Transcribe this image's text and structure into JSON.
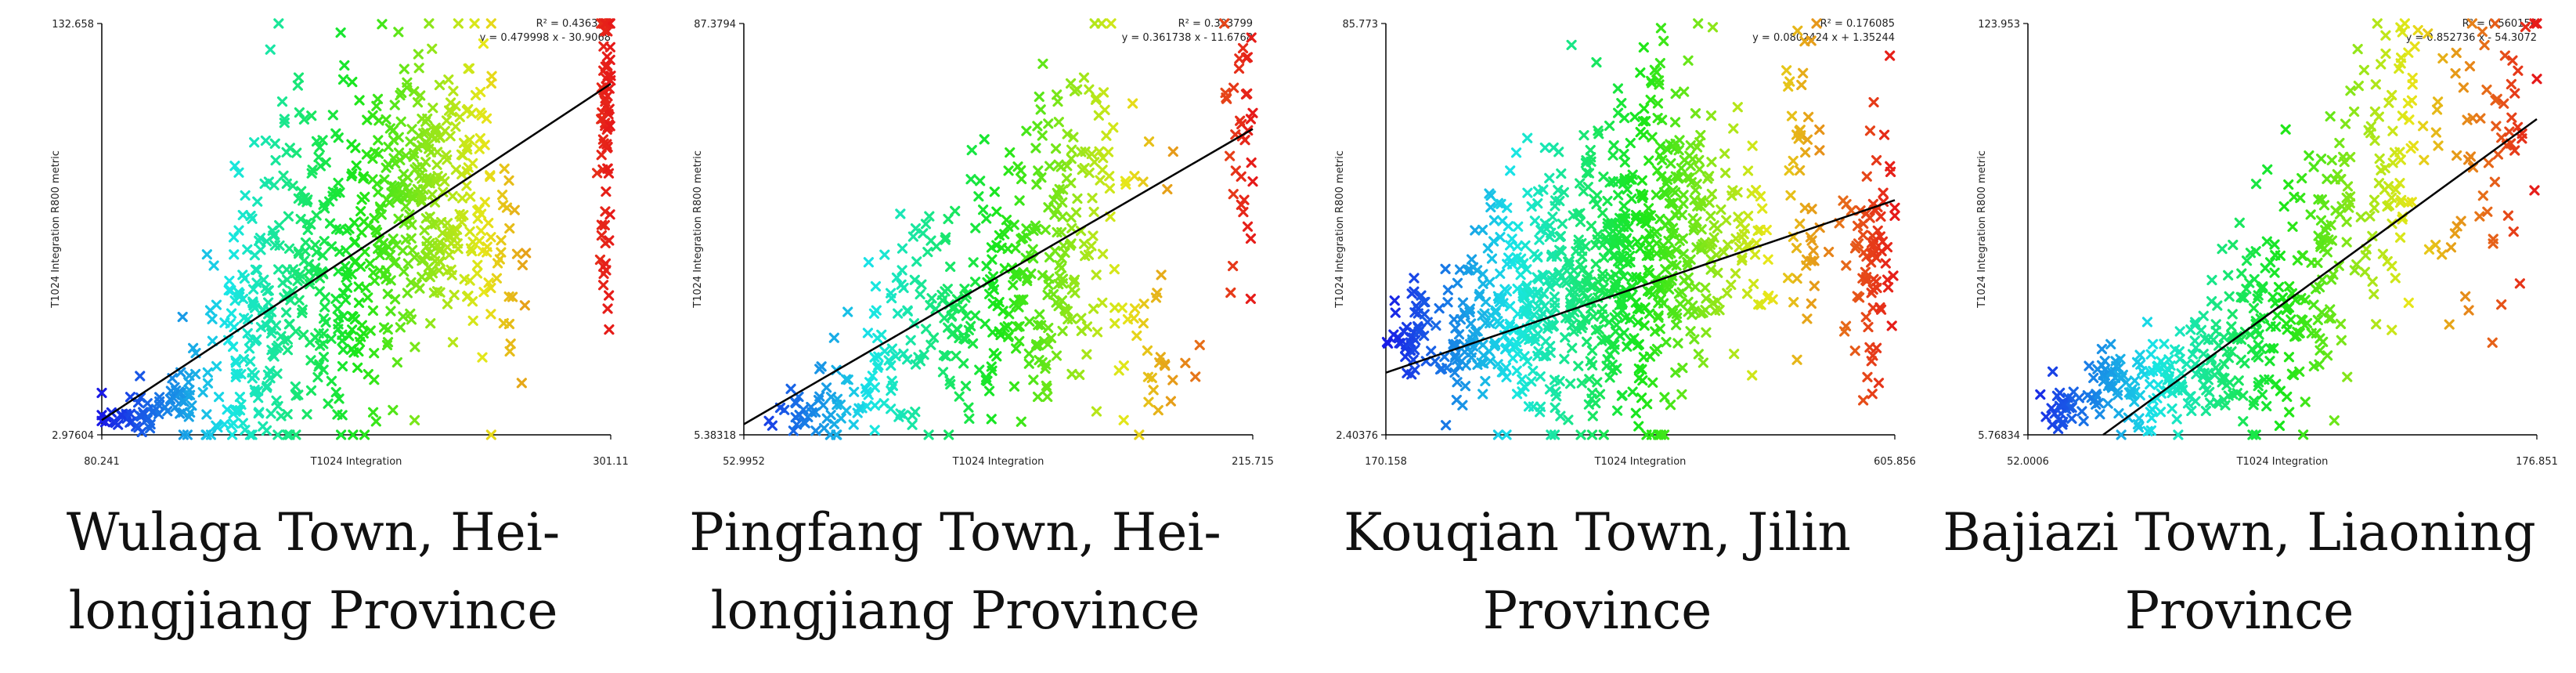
{
  "chart_data": [
    {
      "type": "scatter",
      "title": "",
      "xlabel": "T1024 Integration",
      "ylabel": "T1024 Integration R800 metric",
      "xlim": [
        80.241,
        301.11
      ],
      "ylim": [
        2.97604,
        132.658
      ],
      "x_ticks": [
        "80.241",
        "301.11"
      ],
      "y_ticks": [
        "2.97604",
        "132.658"
      ],
      "annotation": {
        "r2": "R² = 0.436396",
        "equation": "y = 0.479998 x - 30.9068"
      },
      "fit": {
        "slope": 0.479998,
        "intercept": -30.9068
      },
      "caption": [
        "Wulaga Town, Hei-",
        "longjiang Province"
      ],
      "clusters": [
        {
          "x": 92,
          "y": 8,
          "sx": 6,
          "sy": 2,
          "n": 25
        },
        {
          "x": 115,
          "y": 14,
          "sx": 15,
          "sy": 6,
          "n": 60
        },
        {
          "x": 140,
          "y": 32,
          "sx": 12,
          "sy": 18,
          "n": 80
        },
        {
          "x": 160,
          "y": 50,
          "sx": 12,
          "sy": 25,
          "n": 110
        },
        {
          "x": 180,
          "y": 58,
          "sx": 12,
          "sy": 28,
          "n": 120
        },
        {
          "x": 200,
          "y": 65,
          "sx": 10,
          "sy": 28,
          "n": 100
        },
        {
          "x": 215,
          "y": 85,
          "sx": 9,
          "sy": 22,
          "n": 90
        },
        {
          "x": 228,
          "y": 78,
          "sx": 10,
          "sy": 22,
          "n": 90
        },
        {
          "x": 242,
          "y": 80,
          "sx": 8,
          "sy": 25,
          "n": 60
        },
        {
          "x": 255,
          "y": 50,
          "sx": 6,
          "sy": 25,
          "n": 25
        },
        {
          "x": 299,
          "y": 95,
          "sx": 1.2,
          "sy": 30,
          "n": 70
        }
      ]
    },
    {
      "type": "scatter",
      "title": "",
      "xlabel": "T1024 Integration",
      "ylabel": "T1024 Integration R800 metric",
      "xlim": [
        52.9952,
        215.715
      ],
      "ylim": [
        5.38318,
        87.3794
      ],
      "x_ticks": [
        "52.9952",
        "215.715"
      ],
      "y_ticks": [
        "5.38318",
        "87.3794"
      ],
      "annotation": {
        "r2": "R² = 0.393799",
        "equation": "y = 0.361738 x - 11.6768"
      },
      "fit": {
        "slope": 0.361738,
        "intercept": -11.6768
      },
      "caption": [
        "Pingfang Town, Hei-",
        "longjiang Province"
      ],
      "clusters": [
        {
          "x": 75,
          "y": 10,
          "sx": 7,
          "sy": 3,
          "n": 35
        },
        {
          "x": 95,
          "y": 18,
          "sx": 8,
          "sy": 8,
          "n": 50
        },
        {
          "x": 115,
          "y": 30,
          "sx": 10,
          "sy": 13,
          "n": 80
        },
        {
          "x": 135,
          "y": 35,
          "sx": 10,
          "sy": 14,
          "n": 90
        },
        {
          "x": 150,
          "y": 42,
          "sx": 8,
          "sy": 15,
          "n": 80
        },
        {
          "x": 160,
          "y": 55,
          "sx": 8,
          "sy": 14,
          "n": 60
        },
        {
          "x": 175,
          "y": 40,
          "sx": 10,
          "sy": 18,
          "n": 40
        },
        {
          "x": 185,
          "y": 18,
          "sx": 6,
          "sy": 4,
          "n": 12
        },
        {
          "x": 211,
          "y": 62,
          "sx": 3,
          "sy": 14,
          "n": 35
        }
      ]
    },
    {
      "type": "scatter",
      "title": "",
      "xlabel": "T1024 Integration",
      "ylabel": "T1024 Integration R800 metric",
      "xlim": [
        170.158,
        605.856
      ],
      "ylim": [
        2.40376,
        85.773
      ],
      "x_ticks": [
        "170.158",
        "605.856"
      ],
      "y_ticks": [
        "2.40376",
        "85.773"
      ],
      "annotation": {
        "r2": "R² = 0.176085",
        "equation": "y = 0.0802424 x + 1.35244"
      },
      "fit": {
        "slope": 0.0802424,
        "intercept": 1.35244
      },
      "caption": [
        "Kouqian Town, Jilin",
        "Province"
      ],
      "clusters": [
        {
          "x": 195,
          "y": 24,
          "sx": 12,
          "sy": 5,
          "n": 45
        },
        {
          "x": 240,
          "y": 22,
          "sx": 15,
          "sy": 8,
          "n": 80
        },
        {
          "x": 285,
          "y": 28,
          "sx": 18,
          "sy": 12,
          "n": 140
        },
        {
          "x": 330,
          "y": 33,
          "sx": 18,
          "sy": 15,
          "n": 160
        },
        {
          "x": 370,
          "y": 37,
          "sx": 15,
          "sy": 16,
          "n": 160
        },
        {
          "x": 405,
          "y": 42,
          "sx": 14,
          "sy": 18,
          "n": 140
        },
        {
          "x": 440,
          "y": 45,
          "sx": 14,
          "sy": 17,
          "n": 90
        },
        {
          "x": 480,
          "y": 40,
          "sx": 15,
          "sy": 12,
          "n": 40
        },
        {
          "x": 530,
          "y": 55,
          "sx": 8,
          "sy": 18,
          "n": 45
        },
        {
          "x": 585,
          "y": 40,
          "sx": 12,
          "sy": 12,
          "n": 80
        }
      ]
    },
    {
      "type": "scatter",
      "title": "",
      "xlabel": "T1024 Integration",
      "ylabel": "T1024 Integration R800 metric",
      "xlim": [
        52.0006,
        176.851
      ],
      "ylim": [
        5.76834,
        123.953
      ],
      "x_ticks": [
        "52.0006",
        "176.851"
      ],
      "y_ticks": [
        "5.76834",
        "123.953"
      ],
      "annotation": {
        "r2": "R² = 0.560156",
        "equation": "y = 0.852736 x - 54.3072"
      },
      "fit": {
        "slope": 0.852736,
        "intercept": -54.3072
      },
      "caption": [
        "Bajiazi Town, Liaoning",
        "Province"
      ],
      "clusters": [
        {
          "x": 60,
          "y": 13,
          "sx": 3,
          "sy": 3,
          "n": 25
        },
        {
          "x": 72,
          "y": 18,
          "sx": 6,
          "sy": 6,
          "n": 50
        },
        {
          "x": 88,
          "y": 22,
          "sx": 8,
          "sy": 8,
          "n": 80
        },
        {
          "x": 103,
          "y": 30,
          "sx": 7,
          "sy": 12,
          "n": 90
        },
        {
          "x": 116,
          "y": 45,
          "sx": 6,
          "sy": 18,
          "n": 80
        },
        {
          "x": 130,
          "y": 62,
          "sx": 6,
          "sy": 20,
          "n": 70
        },
        {
          "x": 142,
          "y": 90,
          "sx": 5,
          "sy": 20,
          "n": 60
        },
        {
          "x": 155,
          "y": 80,
          "sx": 8,
          "sy": 25,
          "n": 40
        },
        {
          "x": 170,
          "y": 100,
          "sx": 5,
          "sy": 18,
          "n": 30
        }
      ]
    }
  ],
  "colors": {
    "fit_line": "#000000",
    "axis": "#000000"
  }
}
